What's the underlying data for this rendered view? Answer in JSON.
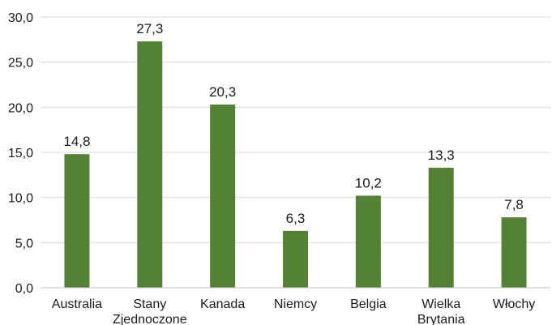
{
  "chart_data": {
    "type": "bar",
    "title": "",
    "xlabel": "",
    "ylabel": "",
    "categories": [
      [
        "Australia"
      ],
      [
        "Stany",
        "Zjednoczone"
      ],
      [
        "Kanada"
      ],
      [
        "Niemcy"
      ],
      [
        "Belgia"
      ],
      [
        "Wielka",
        "Brytania"
      ],
      [
        "Włochy"
      ]
    ],
    "values": [
      14.8,
      27.3,
      20.3,
      6.3,
      10.2,
      13.3,
      7.8
    ],
    "value_labels": [
      "14,8",
      "27,3",
      "20,3",
      "6,3",
      "10,2",
      "13,3",
      "7,8"
    ],
    "ylim": [
      0,
      30
    ],
    "yticks": [
      0,
      5,
      10,
      15,
      20,
      25,
      30
    ],
    "ytick_labels": [
      "0,0",
      "5,0",
      "10,0",
      "15,0",
      "20,0",
      "25,0",
      "30,0"
    ],
    "grid": true,
    "legend": "none",
    "bar_color": "#548235"
  }
}
